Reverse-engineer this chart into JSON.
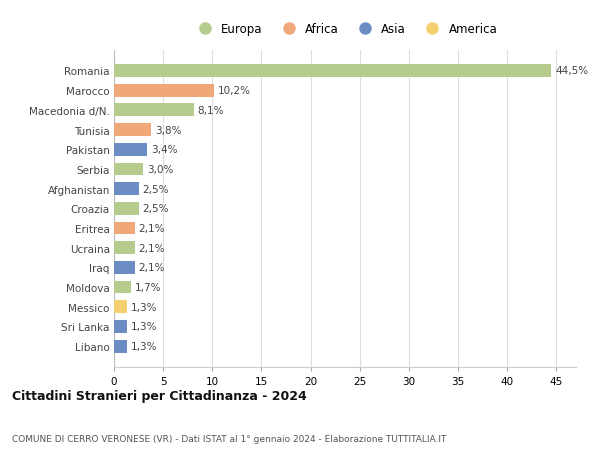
{
  "countries": [
    "Romania",
    "Marocco",
    "Macedonia d/N.",
    "Tunisia",
    "Pakistan",
    "Serbia",
    "Afghanistan",
    "Croazia",
    "Eritrea",
    "Ucraina",
    "Iraq",
    "Moldova",
    "Messico",
    "Sri Lanka",
    "Libano"
  ],
  "values": [
    44.5,
    10.2,
    8.1,
    3.8,
    3.4,
    3.0,
    2.5,
    2.5,
    2.1,
    2.1,
    2.1,
    1.7,
    1.3,
    1.3,
    1.3
  ],
  "labels": [
    "44,5%",
    "10,2%",
    "8,1%",
    "3,8%",
    "3,4%",
    "3,0%",
    "2,5%",
    "2,5%",
    "2,1%",
    "2,1%",
    "2,1%",
    "1,7%",
    "1,3%",
    "1,3%",
    "1,3%"
  ],
  "continents": [
    "Europa",
    "Africa",
    "Europa",
    "Africa",
    "Asia",
    "Europa",
    "Asia",
    "Europa",
    "Africa",
    "Europa",
    "Asia",
    "Europa",
    "America",
    "Asia",
    "Asia"
  ],
  "colors": {
    "Europa": "#b5cc8e",
    "Africa": "#f0a87a",
    "Asia": "#6b8dc4",
    "America": "#f5d06e"
  },
  "legend_order": [
    "Europa",
    "Africa",
    "Asia",
    "America"
  ],
  "title": "Cittadini Stranieri per Cittadinanza - 2024",
  "subtitle": "COMUNE DI CERRO VERONESE (VR) - Dati ISTAT al 1° gennaio 2024 - Elaborazione TUTTITALIA.IT",
  "xlim": [
    0,
    47
  ],
  "xticks": [
    0,
    5,
    10,
    15,
    20,
    25,
    30,
    35,
    40,
    45
  ],
  "bg_color": "#ffffff",
  "grid_color": "#dddddd"
}
